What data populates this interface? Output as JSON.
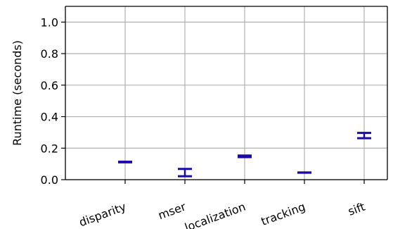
{
  "chart_data": {
    "type": "errorbar",
    "title": "",
    "xlabel": "",
    "ylabel": "Runtime (seconds)",
    "categories": [
      "disparity",
      "mser",
      "localization",
      "tracking",
      "sift"
    ],
    "ylim": [
      0.0,
      1.1
    ],
    "yticks": [
      "0.0",
      "0.2",
      "0.4",
      "0.6",
      "0.8",
      "1.0"
    ],
    "ytick_values": [
      0.0,
      0.2,
      0.4,
      0.6,
      0.8,
      1.0
    ],
    "series": [
      {
        "values": [
          0.112,
          0.045,
          0.148,
          0.045,
          0.28
        ],
        "lower": [
          0.11,
          0.022,
          0.143,
          0.044,
          0.263
        ],
        "upper": [
          0.114,
          0.068,
          0.153,
          0.046,
          0.297
        ]
      }
    ],
    "grid": true,
    "colors": {
      "errorbar": "#1a0aa8",
      "grid": "#b0b0b0",
      "axes": "#000000"
    }
  }
}
